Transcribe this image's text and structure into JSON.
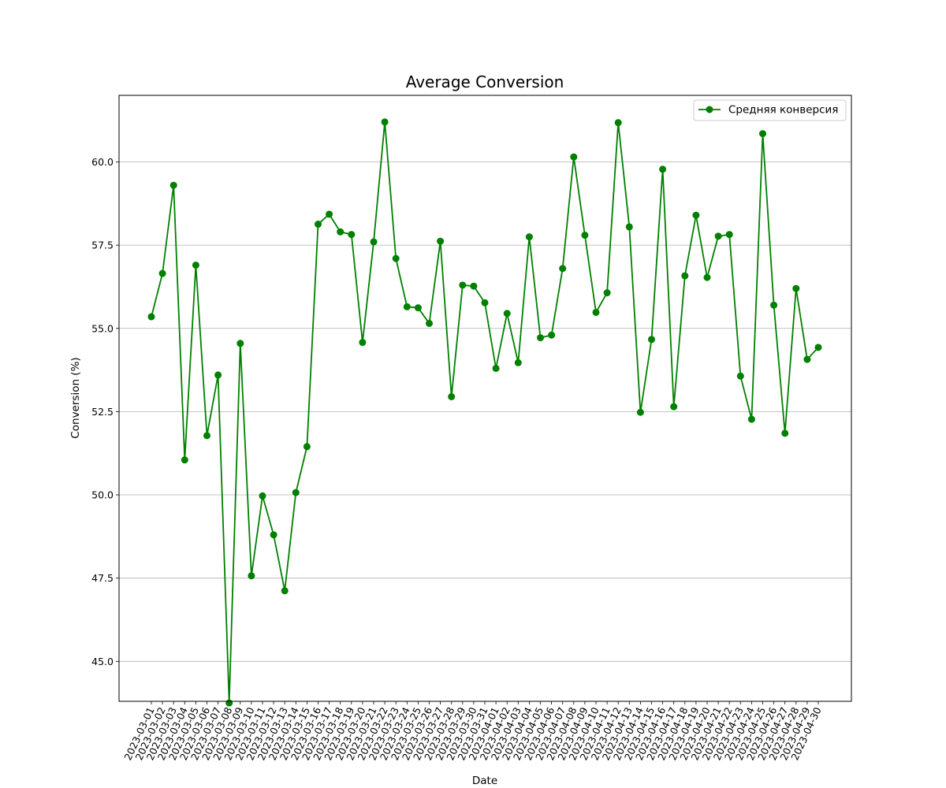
{
  "chart_data": {
    "type": "line",
    "title": "Average Conversion",
    "xlabel": "Date",
    "ylabel": "Conversion (%)",
    "ylim": [
      43.8,
      62.0
    ],
    "yticks": [
      45.0,
      47.5,
      50.0,
      52.5,
      55.0,
      57.5,
      60.0
    ],
    "grid": "y",
    "legend": "top-right",
    "color": "#008000",
    "x": [
      "2023-03-01",
      "2023-03-02",
      "2023-03-03",
      "2023-03-04",
      "2023-03-05",
      "2023-03-06",
      "2023-03-07",
      "2023-03-08",
      "2023-03-09",
      "2023-03-10",
      "2023-03-11",
      "2023-03-12",
      "2023-03-13",
      "2023-03-14",
      "2023-03-15",
      "2023-03-16",
      "2023-03-17",
      "2023-03-18",
      "2023-03-19",
      "2023-03-20",
      "2023-03-21",
      "2023-03-22",
      "2023-03-23",
      "2023-03-24",
      "2023-03-25",
      "2023-03-26",
      "2023-03-27",
      "2023-03-28",
      "2023-03-29",
      "2023-03-30",
      "2023-03-31",
      "2023-04-01",
      "2023-04-02",
      "2023-04-03",
      "2023-04-04",
      "2023-04-05",
      "2023-04-06",
      "2023-04-07",
      "2023-04-08",
      "2023-04-09",
      "2023-04-10",
      "2023-04-11",
      "2023-04-12",
      "2023-04-13",
      "2023-04-14",
      "2023-04-15",
      "2023-04-16",
      "2023-04-17",
      "2023-04-18",
      "2023-04-19",
      "2023-04-20",
      "2023-04-21",
      "2023-04-22",
      "2023-04-23",
      "2023-04-24",
      "2023-04-25",
      "2023-04-26",
      "2023-04-27",
      "2023-04-28",
      "2023-04-29",
      "2023-04-30"
    ],
    "series": [
      {
        "name": "Средняя конверсия",
        "values": [
          55.35,
          56.65,
          59.3,
          51.05,
          56.9,
          51.78,
          53.6,
          43.75,
          54.55,
          47.57,
          49.97,
          48.8,
          47.12,
          50.07,
          51.45,
          58.13,
          58.43,
          57.9,
          57.82,
          54.58,
          57.6,
          61.2,
          57.1,
          55.65,
          55.62,
          55.15,
          57.62,
          52.95,
          56.3,
          56.27,
          55.77,
          53.8,
          55.45,
          53.97,
          57.75,
          54.72,
          54.8,
          56.8,
          60.15,
          57.8,
          55.48,
          56.07,
          61.18,
          58.05,
          52.48,
          54.67,
          59.78,
          52.65,
          56.58,
          58.4,
          56.53,
          57.77,
          57.82,
          53.57,
          52.27,
          60.85,
          55.7,
          51.85,
          56.2,
          54.07,
          54.43
        ]
      }
    ]
  }
}
